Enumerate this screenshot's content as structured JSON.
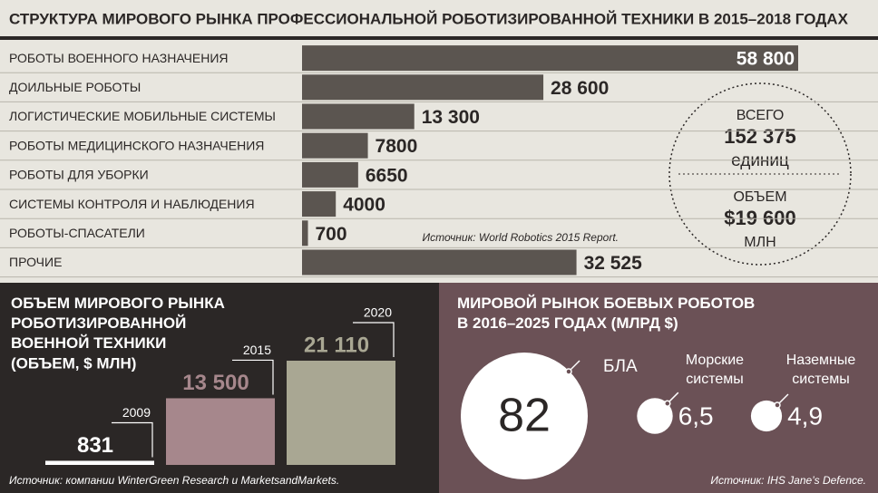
{
  "chart_data": [
    {
      "type": "hbar",
      "title": "СТРУКТУРА МИРОВОГО РЫНКА ПРОФЕССИОНАЛЬНОЙ РОБОТИЗИРОВАННОЙ ТЕХНИКИ В 2015–2018 ГОДАХ",
      "categories": [
        "РОБОТЫ ВОЕННОГО НАЗНАЧЕНИЯ",
        "ДОИЛЬНЫЕ РОБОТЫ",
        "ЛОГИСТИЧЕСКИЕ МОБИЛЬНЫЕ СИСТЕМЫ",
        "РОБОТЫ МЕДИЦИНСКОГО НАЗНАЧЕНИЯ",
        "РОБОТЫ ДЛЯ УБОРКИ",
        "СИСТЕМЫ КОНТРОЛЯ И НАБЛЮДЕНИЯ",
        "РОБОТЫ-СПАСАТЕЛИ",
        "ПРОЧИЕ"
      ],
      "values": [
        58800,
        28600,
        13300,
        7800,
        6650,
        4000,
        700,
        32525
      ],
      "value_labels": [
        "58 800",
        "28 600",
        "13 300",
        "7800",
        "6650",
        "4000",
        "700",
        "32 525"
      ],
      "color": "#5b5550",
      "source": "Источник: World Robotics 2015 Report.",
      "summary": {
        "total_label": "ВСЕГО",
        "total": "152 375",
        "total_unit": "единиц",
        "volume_label": "ОБЪЕМ",
        "volume": "$19 600",
        "volume_unit": "МЛН"
      }
    },
    {
      "type": "bar",
      "title": "ОБЪЕМ МИРОВОГО РЫНКА\nРОБОТИЗИРОВАННОЙ\nВОЕННОЙ ТЕХНИКИ\n(ОБЪЕМ, $ МЛН)",
      "categories": [
        "2009",
        "2015",
        "2020"
      ],
      "values": [
        831,
        13500,
        21110
      ],
      "value_labels": [
        "831",
        "13 500",
        "21 110"
      ],
      "colors": [
        "#ffffff",
        "#a6878c",
        "#a9a793"
      ],
      "source": "Источник: компании WinterGreen Research и MarketsandMarkets."
    },
    {
      "type": "bubble",
      "title": "МИРОВОЙ РЫНОК БОЕВЫХ РОБОТОВ\nВ 2016–2025 ГОДАХ (МЛРД $)",
      "categories": [
        "БЛА",
        "Морские\nсистемы",
        "Наземные\nсистемы"
      ],
      "values": [
        82,
        6.5,
        4.9
      ],
      "value_labels": [
        "82",
        "6,5",
        "4,9"
      ],
      "color": "#ffffff",
      "source": "Источник: IHS Jane’s Defence."
    }
  ]
}
